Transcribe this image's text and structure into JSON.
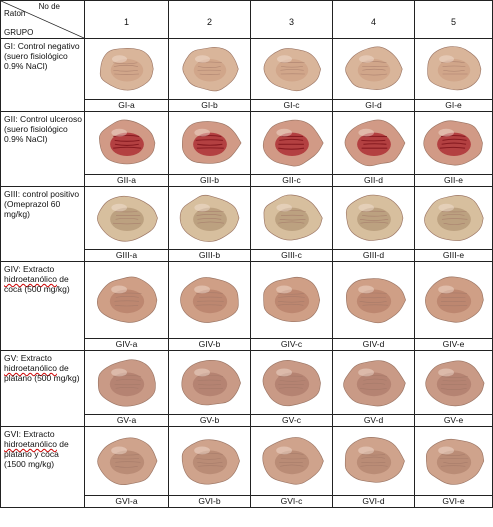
{
  "header": {
    "corner_top": "No de",
    "corner_mid": "Raton",
    "corner_bottom": "GRUPO",
    "columns": [
      "1",
      "2",
      "3",
      "4",
      "5"
    ]
  },
  "groups": [
    {
      "label_parts": [
        "GI: Control negativo (suero fisiológico 0.9% NaCl)"
      ],
      "captions": [
        "GI-a",
        "GI-b",
        "GI-c",
        "GI-d",
        "GI-e"
      ],
      "tone": "#d9b59a",
      "lesion": "#c48a6e"
    },
    {
      "label_parts": [
        "GII: Control ulceroso (suero fisiológico 0.9% NaCl)"
      ],
      "captions": [
        "GII-a",
        "GII-b",
        "GII-c",
        "GII-d",
        "GII-e"
      ],
      "tone": "#d19a86",
      "lesion": "#a8212a"
    },
    {
      "label_parts": [
        "GIII: control positivo (Omeprazol 60 mg/kg)"
      ],
      "captions": [
        "GIII-a",
        "GIII-b",
        "GIII-c",
        "GIII-d",
        "GIII-e"
      ],
      "tone": "#d7bf9e",
      "lesion": "#8a6a48"
    },
    {
      "label_parts": [
        "GIV: Extracto ",
        "hidroetanólico",
        " de coca (500 mg/kg)"
      ],
      "captions": [
        "GIV-a",
        "GIV-b",
        "GIV-c",
        "GIV-d",
        "GIV-e"
      ],
      "tone": "#cf9f86",
      "lesion": "#9b5b48"
    },
    {
      "label_parts": [
        "GV: Extracto ",
        "hidroetanólico",
        " de plátano (500 mg/kg)"
      ],
      "captions": [
        "GV-a",
        "GV-b",
        "GV-c",
        "GV-d",
        "GV-e"
      ],
      "tone": "#c99a86",
      "lesion": "#8f5a4c"
    },
    {
      "label_parts": [
        "GVI: Extracto ",
        "hidroetanólico",
        " de plátano y coca (1500 mg/kg)"
      ],
      "captions": [
        "GVI-a",
        "GVI-b",
        "GVI-c",
        "GVI-d",
        "GVI-e"
      ],
      "tone": "#cfa38c",
      "lesion": "#93604e"
    }
  ]
}
